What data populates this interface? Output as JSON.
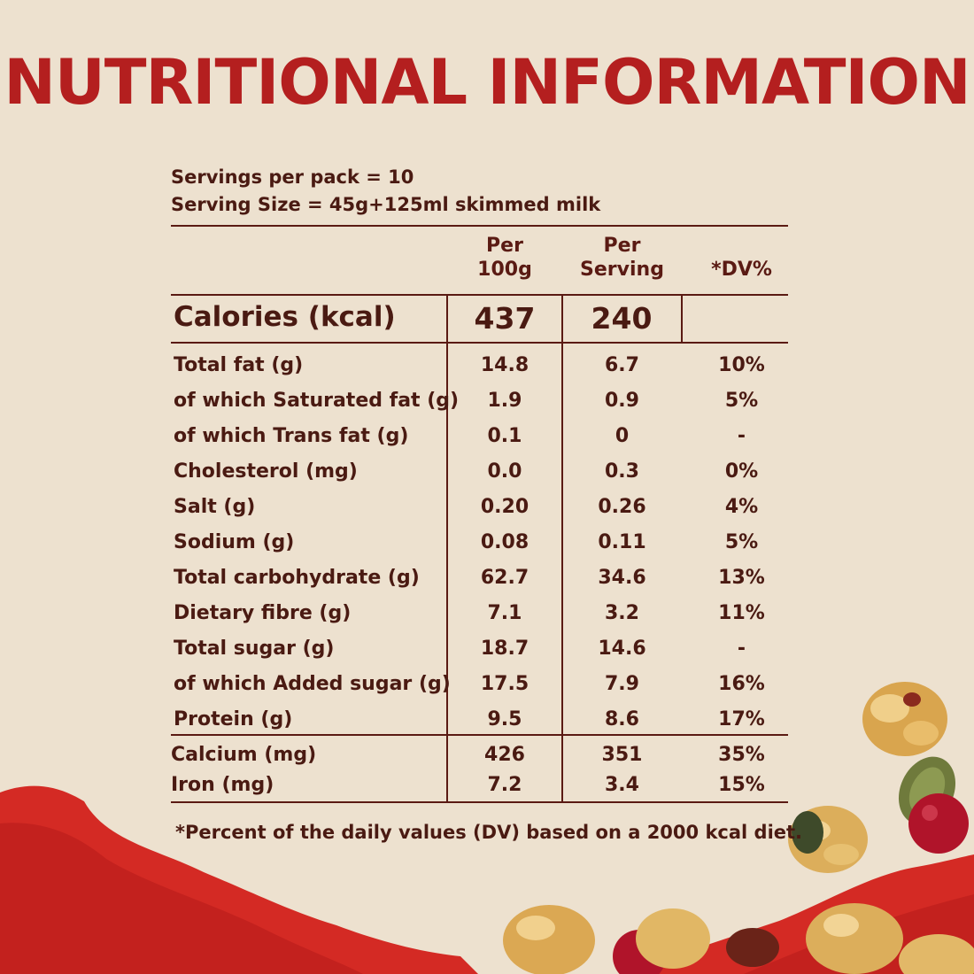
{
  "title": "NUTRITIONAL INFORMATION",
  "servings_per_pack": "Servings per pack = 10",
  "serving_size": "Serving Size = 45g+125ml skimmed milk",
  "columns": {
    "per_100g_line1": "Per",
    "per_100g_line2": "100g",
    "per_serving_line1": "Per",
    "per_serving_line2": "Serving",
    "dv": "*DV%"
  },
  "calories": {
    "label": "Calories (kcal)",
    "per_100g": "437",
    "per_serving": "240",
    "dv": ""
  },
  "nutrients": [
    {
      "label": "Total fat (g)",
      "per_100g": "14.8",
      "per_serving": "6.7",
      "dv": "10%"
    },
    {
      "label": "of which Saturated fat (g)",
      "per_100g": "1.9",
      "per_serving": "0.9",
      "dv": "5%"
    },
    {
      "label": "of which Trans fat (g)",
      "per_100g": "0.1",
      "per_serving": "0",
      "dv": "-"
    },
    {
      "label": "Cholesterol (mg)",
      "per_100g": "0.0",
      "per_serving": "0.3",
      "dv": "0%"
    },
    {
      "label": "Salt (g)",
      "per_100g": "0.20",
      "per_serving": "0.26",
      "dv": "4%"
    },
    {
      "label": "Sodium (g)",
      "per_100g": "0.08",
      "per_serving": "0.11",
      "dv": "5%"
    },
    {
      "label": "Total carbohydrate (g)",
      "per_100g": "62.7",
      "per_serving": "34.6",
      "dv": "13%"
    },
    {
      "label": "Dietary fibre (g)",
      "per_100g": "7.1",
      "per_serving": "3.2",
      "dv": "11%"
    },
    {
      "label": "Total sugar (g)",
      "per_100g": "18.7",
      "per_serving": "14.6",
      "dv": "-"
    },
    {
      "label": "of which Added sugar (g)",
      "per_100g": "17.5",
      "per_serving": "7.9",
      "dv": "16%"
    },
    {
      "label": "Protein (g)",
      "per_100g": "9.5",
      "per_serving": "8.6",
      "dv": "17%"
    }
  ],
  "minerals": [
    {
      "label": "Calcium (mg)",
      "per_100g": "426",
      "per_serving": "351",
      "dv": "35%"
    },
    {
      "label": "Iron (mg)",
      "per_100g": "7.2",
      "per_serving": "3.4",
      "dv": "15%"
    }
  ],
  "footnote": "*Percent of the daily values (DV) based on a 2000 kcal diet.",
  "colors": {
    "background": "#ede1cf",
    "title": "#b41f1f",
    "text": "#4a1a12",
    "accent_red": "#c8201e"
  }
}
